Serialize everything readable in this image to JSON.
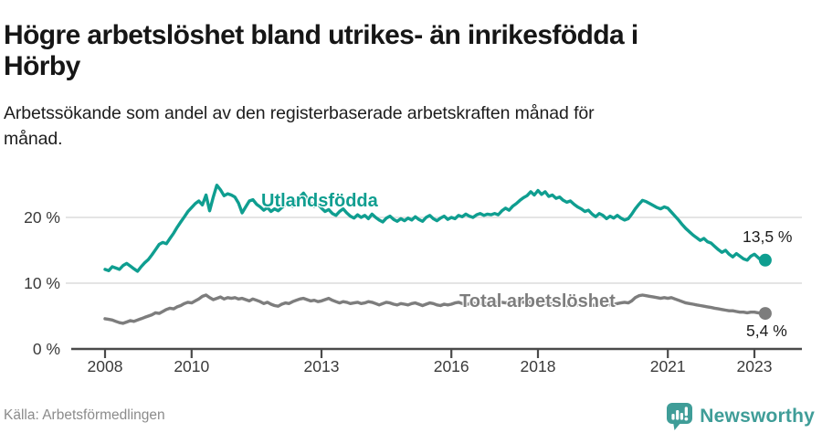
{
  "header": {
    "title_line1": "Högre arbetslöshet bland utrikes- än inrikesfödda i",
    "title_line2": "Hörby",
    "subtitle_line1": "Arbetssökande som andel av den registerbaserade arbetskraften månad för",
    "subtitle_line2": "månad."
  },
  "footer": {
    "source": "Källa: Arbetsförmedlingen",
    "brand": "Newsworthy",
    "brand_color": "#3f9d98"
  },
  "chart_data": {
    "type": "line",
    "x_unit": "month",
    "x_start": "2008-01",
    "x_end": "2023-04",
    "ylim": [
      0,
      26
    ],
    "grid": "horizontal",
    "legend_position": "inline-labels",
    "x_axis": {
      "ticks": [
        2008,
        2010,
        2013,
        2016,
        2018,
        2021,
        2023
      ]
    },
    "y_axis": {
      "ticks": [
        {
          "label": "0 %",
          "value": 0
        },
        {
          "label": "10 %",
          "value": 10
        },
        {
          "label": "20 %",
          "value": 20
        }
      ]
    },
    "colors": {
      "grid": "#dcdcdc",
      "axis": "#4a4a4a",
      "tick_label": "#3a3a3a"
    },
    "series": [
      {
        "name": "Utlandsfödda",
        "color": "#0f9e90",
        "end_label": "13,5 %",
        "end_value": 13.5,
        "values": [
          12.1,
          11.9,
          12.5,
          12.3,
          12.1,
          12.7,
          13.0,
          12.6,
          12.2,
          11.8,
          12.5,
          13.1,
          13.6,
          14.3,
          15.1,
          15.9,
          16.2,
          16.0,
          16.8,
          17.6,
          18.5,
          19.3,
          20.1,
          20.9,
          21.5,
          22.1,
          22.5,
          21.9,
          23.4,
          21.0,
          23.1,
          24.9,
          24.2,
          23.3,
          23.6,
          23.4,
          23.1,
          22.2,
          20.7,
          21.6,
          22.5,
          22.7,
          22.0,
          21.6,
          21.1,
          21.5,
          20.9,
          21.3,
          21.0,
          21.5,
          21.9,
          22.1,
          21.7,
          22.4,
          23.1,
          23.7,
          22.9,
          22.2,
          21.7,
          22.0,
          21.4,
          20.9,
          21.2,
          20.6,
          20.3,
          20.9,
          21.3,
          20.7,
          20.2,
          19.9,
          20.4,
          20.0,
          20.3,
          19.8,
          20.5,
          20.0,
          19.6,
          19.3,
          19.9,
          20.2,
          19.7,
          19.4,
          19.8,
          19.5,
          19.9,
          19.6,
          20.1,
          19.7,
          19.4,
          20.0,
          20.3,
          19.8,
          19.5,
          19.9,
          20.2,
          19.7,
          20.0,
          19.8,
          20.3,
          20.1,
          20.5,
          20.2,
          20.0,
          20.4,
          20.6,
          20.3,
          20.5,
          20.4,
          20.6,
          20.4,
          21.0,
          21.4,
          21.1,
          21.7,
          22.1,
          22.6,
          23.0,
          23.3,
          23.9,
          23.4,
          24.1,
          23.5,
          23.9,
          23.2,
          23.4,
          22.9,
          23.1,
          22.6,
          22.3,
          22.5,
          22.0,
          21.6,
          21.3,
          20.9,
          21.1,
          20.5,
          20.1,
          20.6,
          20.3,
          19.8,
          20.2,
          19.9,
          20.3,
          19.9,
          19.6,
          19.8,
          20.5,
          21.3,
          22.0,
          22.6,
          22.4,
          22.1,
          21.8,
          21.5,
          21.3,
          21.6,
          21.4,
          20.8,
          20.2,
          19.6,
          18.9,
          18.3,
          17.8,
          17.3,
          16.9,
          16.5,
          16.8,
          16.3,
          16.1,
          15.6,
          15.1,
          14.7,
          15.0,
          14.4,
          14.0,
          14.5,
          14.1,
          13.7,
          13.5,
          14.1,
          14.4,
          13.9,
          13.4,
          13.5
        ]
      },
      {
        "name": "Total arbetslöshet",
        "color": "#7d7d7d",
        "end_label": "5,4 %",
        "end_value": 5.4,
        "values": [
          4.6,
          4.5,
          4.4,
          4.2,
          4.0,
          3.9,
          4.1,
          4.3,
          4.2,
          4.4,
          4.6,
          4.8,
          5.0,
          5.2,
          5.5,
          5.4,
          5.7,
          6.0,
          6.2,
          6.1,
          6.4,
          6.6,
          6.9,
          7.1,
          7.0,
          7.3,
          7.6,
          8.0,
          8.2,
          7.8,
          7.5,
          7.7,
          7.9,
          7.6,
          7.8,
          7.7,
          7.8,
          7.6,
          7.7,
          7.5,
          7.3,
          7.6,
          7.4,
          7.2,
          6.9,
          7.1,
          6.8,
          6.6,
          6.5,
          6.8,
          7.0,
          6.9,
          7.2,
          7.4,
          7.6,
          7.7,
          7.5,
          7.3,
          7.4,
          7.2,
          7.3,
          7.5,
          7.7,
          7.4,
          7.2,
          7.0,
          7.2,
          7.1,
          6.9,
          7.0,
          7.1,
          6.9,
          7.0,
          7.2,
          7.1,
          6.9,
          6.7,
          6.9,
          7.1,
          7.0,
          6.8,
          6.7,
          6.9,
          6.8,
          6.7,
          6.9,
          7.0,
          6.8,
          6.6,
          6.8,
          7.0,
          6.9,
          6.7,
          6.6,
          6.8,
          6.7,
          6.8,
          7.0,
          7.1,
          6.9,
          6.7,
          6.9,
          7.0,
          6.8,
          6.9,
          7.0,
          6.9,
          7.1,
          7.0,
          7.2,
          7.1,
          7.0,
          7.1,
          7.2,
          7.3,
          7.2,
          7.1,
          7.2,
          7.1,
          7.0,
          7.1,
          7.0,
          6.9,
          7.0,
          6.8,
          6.7,
          6.9,
          6.8,
          6.6,
          6.7,
          6.8,
          6.7,
          6.8,
          6.9,
          6.8,
          6.7,
          6.6,
          6.8,
          6.9,
          6.8,
          6.7,
          6.8,
          6.9,
          7.0,
          7.1,
          7.0,
          7.3,
          7.8,
          8.1,
          8.2,
          8.1,
          8.0,
          7.9,
          7.8,
          7.7,
          7.8,
          7.7,
          7.8,
          7.6,
          7.4,
          7.2,
          7.0,
          6.9,
          6.8,
          6.7,
          6.6,
          6.5,
          6.4,
          6.3,
          6.2,
          6.1,
          6.0,
          5.9,
          5.8,
          5.8,
          5.7,
          5.6,
          5.6,
          5.5,
          5.6,
          5.6,
          5.5,
          5.4,
          5.4
        ]
      }
    ]
  }
}
